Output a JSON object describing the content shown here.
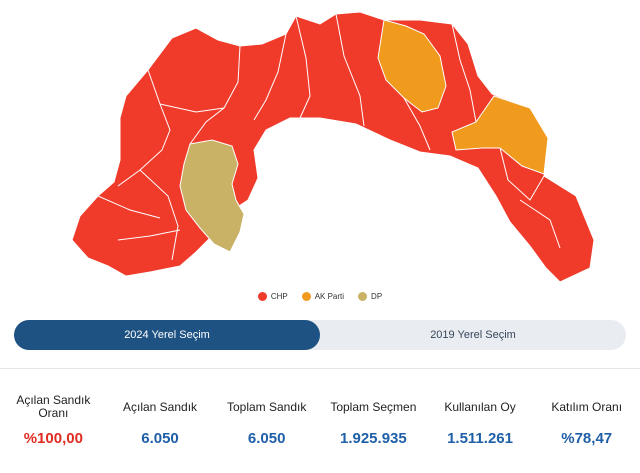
{
  "legend": [
    {
      "label": "CHP",
      "color": "#f03a2a"
    },
    {
      "label": "AK Parti",
      "color": "#f09a1e"
    },
    {
      "label": "DP",
      "color": "#c9b266"
    }
  ],
  "tabs": [
    {
      "label": "2024 Yerel Seçim",
      "active": true
    },
    {
      "label": "2019 Yerel Seçim",
      "active": false
    }
  ],
  "stats": {
    "opened_ratio": {
      "label": "Açılan Sandık Oranı",
      "value": "%100,00"
    },
    "opened_boxes": {
      "label": "Açılan Sandık",
      "value": "6.050"
    },
    "total_boxes": {
      "label": "Toplam Sandık",
      "value": "6.050"
    },
    "total_voters": {
      "label": "Toplam Seçmen",
      "value": "1.925.935"
    },
    "votes_used": {
      "label": "Kullanılan Oy",
      "value": "1.511.261"
    },
    "turnout": {
      "label": "Katılım Oranı",
      "value": "%78,47"
    }
  }
}
